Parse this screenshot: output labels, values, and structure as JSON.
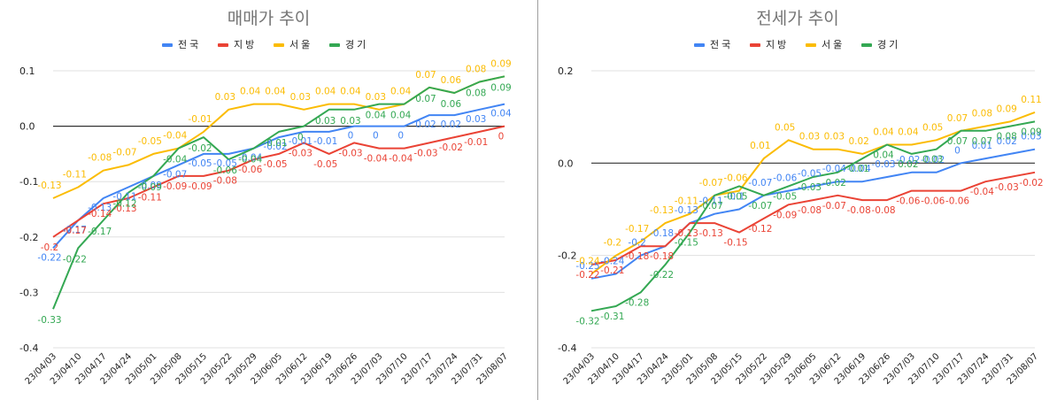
{
  "chart_data": [
    {
      "type": "line",
      "title": "매매가 추이",
      "categories": [
        "23/04/03",
        "23/04/10",
        "23/04/17",
        "23/04/24",
        "23/05/01",
        "23/05/08",
        "23/05/15",
        "23/05/22",
        "23/05/29",
        "23/06/05",
        "23/06/12",
        "23/06/19",
        "23/06/26",
        "23/07/03",
        "23/07/10",
        "23/07/17",
        "23/07/24",
        "23/07/31",
        "23/08/07"
      ],
      "ylim": [
        -0.4,
        0.1
      ],
      "yticks": [
        "-0.4",
        "-0.3",
        "-0.2",
        "-0.1",
        "0.0",
        "0.1"
      ],
      "legend_position": "top",
      "series": [
        {
          "name": "전국",
          "color": "#4285f4",
          "values": [
            -0.22,
            -0.17,
            -0.13,
            -0.11,
            -0.09,
            -0.07,
            -0.05,
            -0.05,
            -0.04,
            -0.02,
            -0.01,
            -0.01,
            0,
            0,
            0,
            0.02,
            0.02,
            0.03,
            0.04
          ]
        },
        {
          "name": "지방",
          "color": "#ea4335",
          "values": [
            -0.2,
            -0.17,
            -0.14,
            -0.13,
            -0.11,
            -0.09,
            -0.09,
            -0.08,
            -0.06,
            -0.05,
            -0.03,
            -0.05,
            -0.03,
            -0.04,
            -0.04,
            -0.03,
            -0.02,
            -0.01,
            0
          ]
        },
        {
          "name": "서울",
          "color": "#fbbc04",
          "values": [
            -0.13,
            -0.11,
            -0.08,
            -0.07,
            -0.05,
            -0.04,
            -0.01,
            0.03,
            0.04,
            0.04,
            0.03,
            0.04,
            0.04,
            0.03,
            0.04,
            0.07,
            0.06,
            0.08,
            0.09
          ]
        },
        {
          "name": "경기",
          "color": "#34a853",
          "values": [
            -0.33,
            -0.22,
            -0.17,
            -0.12,
            -0.09,
            -0.04,
            -0.02,
            -0.06,
            -0.04,
            -0.01,
            0,
            0.03,
            0.03,
            0.04,
            0.04,
            0.07,
            0.06,
            0.08,
            0.09
          ]
        }
      ]
    },
    {
      "type": "line",
      "title": "전세가 추이",
      "categories": [
        "23/04/03",
        "23/04/10",
        "23/04/17",
        "23/04/24",
        "23/05/01",
        "23/05/08",
        "23/05/15",
        "23/05/22",
        "23/05/29",
        "23/06/05",
        "23/06/12",
        "23/06/19",
        "23/06/26",
        "23/07/03",
        "23/07/10",
        "23/07/17",
        "23/07/24",
        "23/07/31",
        "23/08/07"
      ],
      "ylim": [
        -0.4,
        0.2
      ],
      "yticks": [
        "-0.4",
        "-0.2",
        "0.0",
        "0.2"
      ],
      "legend_position": "top",
      "series": [
        {
          "name": "전국",
          "color": "#4285f4",
          "values": [
            -0.25,
            -0.24,
            -0.2,
            -0.18,
            -0.13,
            -0.11,
            -0.1,
            -0.07,
            -0.06,
            -0.05,
            -0.04,
            -0.04,
            -0.03,
            -0.02,
            -0.02,
            0,
            0.01,
            0.02,
            0.03
          ]
        },
        {
          "name": "지방",
          "color": "#ea4335",
          "values": [
            -0.22,
            -0.21,
            -0.18,
            -0.18,
            -0.13,
            -0.13,
            -0.15,
            -0.12,
            -0.09,
            -0.08,
            -0.07,
            -0.08,
            -0.08,
            -0.06,
            -0.06,
            -0.06,
            -0.04,
            -0.03,
            -0.02
          ]
        },
        {
          "name": "서울",
          "color": "#fbbc04",
          "values": [
            -0.24,
            -0.2,
            -0.17,
            -0.13,
            -0.11,
            -0.07,
            -0.06,
            0.01,
            0.05,
            0.03,
            0.03,
            0.02,
            0.04,
            0.04,
            0.05,
            0.07,
            0.08,
            0.09,
            0.11
          ]
        },
        {
          "name": "경기",
          "color": "#34a853",
          "values": [
            -0.32,
            -0.31,
            -0.28,
            -0.22,
            -0.15,
            -0.07,
            -0.05,
            -0.07,
            -0.05,
            -0.03,
            -0.02,
            0.01,
            0.04,
            0.02,
            0.03,
            0.07,
            0.07,
            0.08,
            0.09
          ]
        }
      ]
    }
  ]
}
